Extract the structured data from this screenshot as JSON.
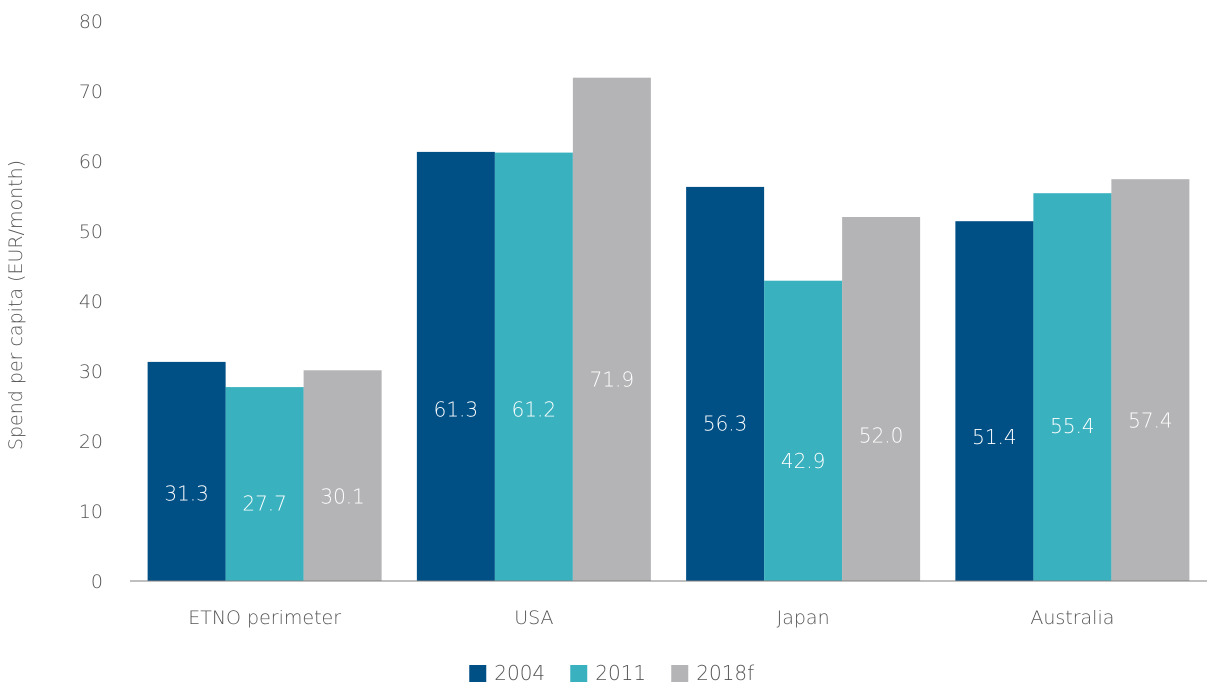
{
  "chart_data": {
    "type": "bar",
    "title": "",
    "xlabel": "",
    "ylabel": "Spend per capita (EUR/month)",
    "ylim": [
      0,
      80
    ],
    "yticks": [
      0,
      10,
      20,
      30,
      40,
      50,
      60,
      70,
      80
    ],
    "grid": false,
    "legend_position": "bottom",
    "categories": [
      "ETNO perimeter",
      "USA",
      "Japan",
      "Australia"
    ],
    "series": [
      {
        "name": "2004",
        "color": "#004f85",
        "values": [
          31.3,
          61.3,
          56.3,
          51.4
        ],
        "labels": [
          "31.3",
          "61.3",
          "56.3",
          "51.4"
        ]
      },
      {
        "name": "2011",
        "color": "#3ab1bf",
        "values": [
          27.7,
          61.2,
          42.9,
          55.4
        ],
        "labels": [
          "27.7",
          "61.2",
          "42.9",
          "55.4"
        ]
      },
      {
        "name": "2018f",
        "color": "#b4b4b6",
        "values": [
          30.1,
          71.9,
          52.0,
          57.4
        ],
        "labels": [
          "30.1",
          "71.9",
          "52.0",
          "57.4"
        ]
      }
    ]
  }
}
